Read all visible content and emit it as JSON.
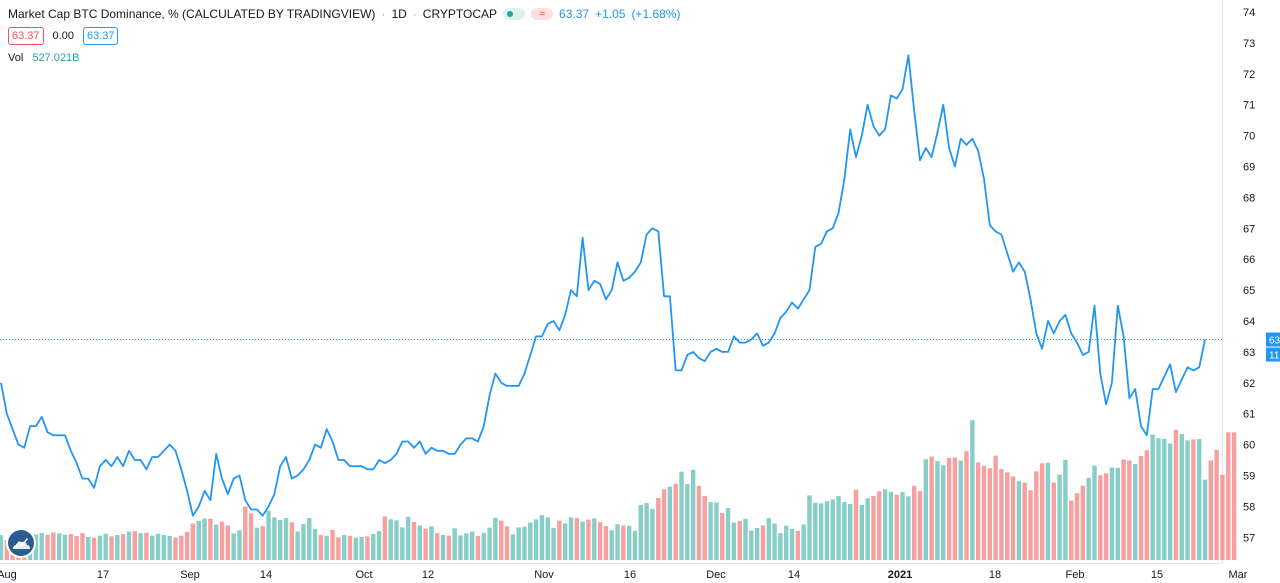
{
  "header": {
    "symbol_title": "Market Cap BTC Dominance, % (CALCULATED BY TRADINGVIEW)",
    "interval": "1D",
    "exchange": "CRYPTOCAP",
    "last_value": "63.37",
    "change": "+1.05",
    "change_pct": "(+1.68%)"
  },
  "ohlc_boxes": {
    "left": "63.37",
    "middle": "0.00",
    "right": "63.37"
  },
  "volume": {
    "label": "Vol",
    "value": "527.021B"
  },
  "price_tags": {
    "last": "63",
    "volume": "11"
  },
  "colors": {
    "line": "#2196f3",
    "vol_up": "#26a69a",
    "vol_down": "#ef5350",
    "grid": "#f0f3fa",
    "dotted": "#2196f3"
  },
  "chart_data": {
    "type": "line",
    "title": "Market Cap BTC Dominance, % (CALCULATED BY TRADINGVIEW)",
    "x_tick_labels": [
      "Aug",
      "17",
      "Sep",
      "14",
      "Oct",
      "12",
      "Nov",
      "16",
      "Dec",
      "14",
      "2021",
      "18",
      "Feb",
      "15",
      "Mar"
    ],
    "y_tick_labels": [
      "74",
      "73",
      "72",
      "71",
      "70",
      "69",
      "68",
      "67",
      "66",
      "65",
      "64",
      "63",
      "62",
      "61",
      "60",
      "59",
      "58",
      "57"
    ],
    "y_axis_side": "right",
    "ylim": [
      56.5,
      74
    ],
    "grid": true,
    "series": [
      {
        "values": [
          62.0,
          61.0,
          60.5,
          60.0,
          59.9,
          60.6,
          60.6,
          60.9,
          60.4,
          60.3,
          60.3,
          60.3,
          59.8,
          59.4,
          58.9,
          58.9,
          58.6,
          59.3,
          59.5,
          59.3,
          59.6,
          59.3,
          59.8,
          59.5,
          59.5,
          59.2,
          59.6,
          59.6,
          59.8,
          60.0,
          59.8,
          59.2,
          58.5,
          57.7,
          58.0,
          58.5,
          58.2,
          59.7,
          58.9,
          58.4,
          58.9,
          59.0,
          58.2,
          57.9,
          57.9,
          57.7,
          58.0,
          58.4,
          59.3,
          59.6,
          58.9,
          59.0,
          59.2,
          59.5,
          60.0,
          59.9,
          60.5,
          60.1,
          59.5,
          59.5,
          59.3,
          59.3,
          59.3,
          59.2,
          59.2,
          59.5,
          59.4,
          59.5,
          59.7,
          60.1,
          60.1,
          59.9,
          60.1,
          59.7,
          59.9,
          59.8,
          59.8,
          59.7,
          59.7,
          60.0,
          60.2,
          60.2,
          60.1,
          60.6,
          61.6,
          62.3,
          62.0,
          61.9,
          61.9,
          61.9,
          62.3,
          62.9,
          63.5,
          63.5,
          63.9,
          64.0,
          63.7,
          64.2,
          65.0,
          64.8,
          66.7,
          65.0,
          65.3,
          65.2,
          64.7,
          65.0,
          65.9,
          65.3,
          65.4,
          65.6,
          65.9,
          66.8,
          67.0,
          66.9,
          64.8,
          64.8,
          62.4,
          62.4,
          62.9,
          63.0,
          62.8,
          62.7,
          63.0,
          63.1,
          63.0,
          63.0,
          63.5,
          63.3,
          63.3,
          63.4,
          63.6,
          63.2,
          63.3,
          63.6,
          64.1,
          64.3,
          64.6,
          64.4,
          64.7,
          65.0,
          66.4,
          66.5,
          66.9,
          67.0,
          67.5,
          68.6,
          70.2,
          69.3,
          70.0,
          71.0,
          70.3,
          70.0,
          70.2,
          71.3,
          71.2,
          71.5,
          72.6,
          70.8,
          69.2,
          69.6,
          69.3,
          70.1,
          71.0,
          69.6,
          69.0,
          69.9,
          69.7,
          69.9,
          69.5,
          68.6,
          67.1,
          66.9,
          66.8,
          66.2,
          65.6,
          65.9,
          65.6,
          64.7,
          63.6,
          63.1,
          64.0,
          63.6,
          64.0,
          64.2,
          63.6,
          63.3,
          62.9,
          63.0,
          64.5,
          62.3,
          61.3,
          62.0,
          64.5,
          63.5,
          61.5,
          61.8,
          60.6,
          60.3,
          61.8,
          61.8,
          62.2,
          62.6,
          61.7,
          62.1,
          62.5,
          62.4,
          62.5,
          63.4
        ]
      },
      {
        "name": "Vol",
        "values": [
          0.78,
          0.62,
          0.71,
          0.7,
          0.74,
          0.73,
          0.8,
          0.84,
          0.79,
          0.86,
          0.83,
          0.79,
          0.81,
          0.75,
          0.84,
          0.72,
          0.7,
          0.76,
          0.82,
          0.74,
          0.78,
          0.81,
          0.89,
          0.9,
          0.84,
          0.85,
          0.76,
          0.82,
          0.78,
          0.75,
          0.7,
          0.76,
          0.88,
          1.14,
          1.22,
          1.3,
          1.29,
          1.11,
          1.2,
          1.08,
          0.83,
          0.93,
          1.67,
          1.46,
          1.01,
          1.06,
          1.54,
          1.33,
          1.25,
          1.31,
          1.18,
          0.89,
          1.12,
          1.31,
          0.97,
          0.78,
          0.76,
          0.94,
          0.71,
          0.78,
          0.76,
          0.7,
          0.72,
          0.74,
          0.81,
          0.9,
          1.36,
          1.27,
          1.24,
          1.02,
          1.35,
          1.19,
          1.08,
          0.98,
          1.05,
          0.84,
          0.78,
          0.76,
          0.99,
          0.77,
          0.83,
          0.89,
          0.75,
          0.85,
          1.01,
          1.32,
          1.23,
          1.05,
          0.8,
          1.02,
          1.04,
          1.17,
          1.27,
          1.4,
          1.33,
          1.0,
          1.23,
          1.14,
          1.33,
          1.31,
          1.2,
          1.26,
          1.3,
          1.18,
          1.06,
          0.93,
          1.12,
          1.08,
          1.07,
          0.91,
          1.72,
          1.78,
          1.6,
          1.94,
          2.21,
          2.29,
          2.38,
          2.76,
          2.37,
          2.82,
          2.32,
          2.0,
          1.81,
          1.8,
          1.47,
          1.62,
          1.17,
          1.22,
          1.29,
          0.92,
          1.0,
          1.08,
          1.31,
          1.14,
          0.84,
          1.07,
          0.97,
          0.91,
          1.11,
          2.02,
          1.79,
          1.77,
          1.84,
          1.89,
          2.0,
          1.81,
          1.75,
          2.19,
          1.72,
          1.93,
          2.0,
          2.15,
          2.21,
          2.13,
          2.04,
          2.12,
          1.99,
          2.32,
          2.16,
          3.15,
          3.23,
          3.09,
          2.96,
          3.19,
          3.2,
          3.11,
          3.4,
          4.37,
          3.05,
          2.94,
          2.87,
          3.26,
          2.84,
          2.74,
          2.61,
          2.46,
          2.42,
          2.18,
          2.77,
          3.02,
          3.04,
          2.42,
          2.67,
          3.13,
          1.86,
          2.09,
          2.32,
          2.57,
          2.95,
          2.65,
          2.71,
          2.89,
          2.88,
          3.14,
          3.11,
          3.0,
          3.25,
          3.43,
          3.92,
          3.81,
          3.79,
          3.64,
          4.07,
          3.94,
          3.74,
          3.77,
          3.78,
          2.51,
          3.11,
          3.44,
          2.66,
          3.99,
          3.99
        ]
      }
    ]
  }
}
